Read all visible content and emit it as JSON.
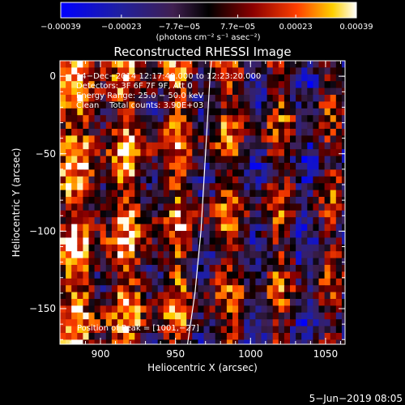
{
  "chart_data": {
    "type": "heatmap",
    "title": "Reconstructed RHESSI Image",
    "xlabel": "Heliocentric X (arcsec)",
    "ylabel": "Heliocentric Y (arcsec)",
    "xlim": [
      873,
      1063
    ],
    "ylim": [
      -173,
      10
    ],
    "x_ticks": [
      900,
      950,
      1000,
      1050
    ],
    "y_ticks": [
      0,
      -50,
      -100,
      -150
    ],
    "x_tick_labels": [
      "900",
      "950",
      "1000",
      "1050"
    ],
    "y_tick_labels": [
      "0",
      "−50",
      "−100",
      "−150"
    ],
    "colorbar": {
      "min": -0.00039,
      "max": 0.00039,
      "tick_values": [
        -0.00039,
        -0.00023,
        -7.7e-05,
        7.7e-05,
        0.00023,
        0.00039
      ],
      "tick_labels": [
        "−0.00039",
        "−0.00023",
        "−7.7e−05",
        "7.7e−05",
        "0.00023",
        "0.00039"
      ],
      "units_label": "(photons cm⁻² s⁻¹ asec⁻²)"
    },
    "annotations": [
      "14−Dec−2014 12:17:40.000 to 12:23:20.000",
      "Detectors: 3F 6F 7F 9F, Att 0",
      "Energy Range: 25.0 − 50.0 keV",
      "Clean    Total counts: 3.90E+03"
    ],
    "peak_label": "Position of Peak = [1001,−27]",
    "limb_curve": [
      [
        958,
        -173
      ],
      [
        963,
        -140
      ],
      [
        967,
        -100
      ],
      [
        970,
        -50
      ],
      [
        973,
        0
      ],
      [
        974,
        10
      ]
    ],
    "grid": false
  },
  "footer_date": "5−Jun−2019 08:05"
}
